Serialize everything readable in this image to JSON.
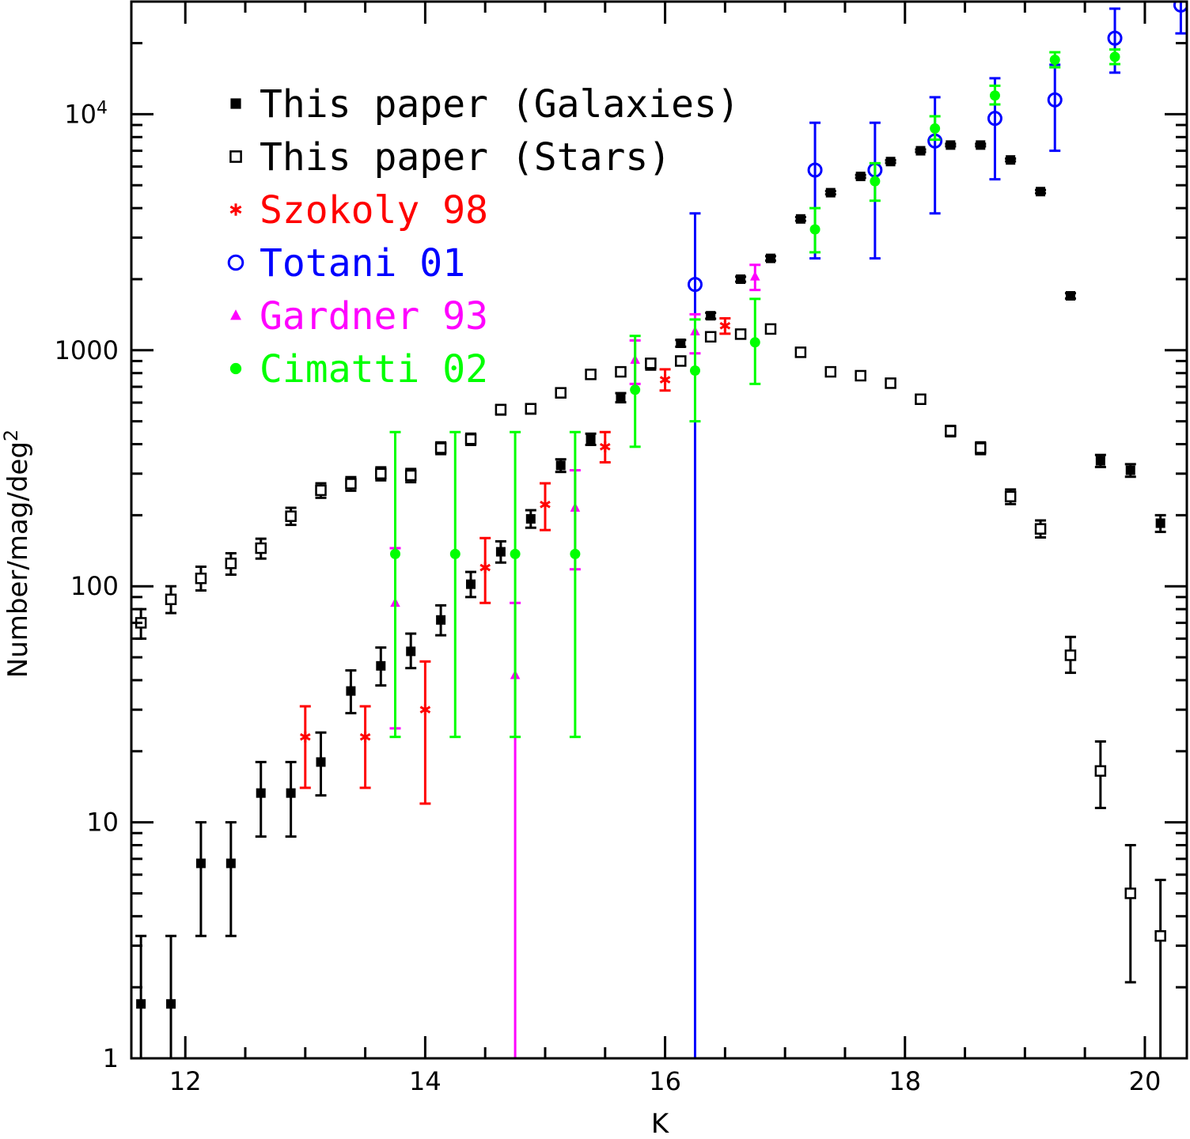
{
  "chart_data": {
    "type": "scatter",
    "title": "",
    "xlabel": "K",
    "ylabel": "Number/mag/deg",
    "ylabel_sup": "2",
    "xscale": "linear",
    "yscale": "log",
    "xlim": [
      11.55,
      20.35
    ],
    "ylim": [
      1,
      30000
    ],
    "xticks": [
      {
        "value": 12,
        "label": "12"
      },
      {
        "value": 14,
        "label": "14"
      },
      {
        "value": 16,
        "label": "16"
      },
      {
        "value": 18,
        "label": "18"
      },
      {
        "value": 20,
        "label": "20"
      }
    ],
    "yticks": [
      {
        "value": 1,
        "label": "1"
      },
      {
        "value": 10,
        "label": "10"
      },
      {
        "value": 100,
        "label": "100"
      },
      {
        "value": 1000,
        "label": "1000"
      },
      {
        "value": 10000,
        "label": "10",
        "sup": "4"
      }
    ],
    "legend_position": "top-left",
    "series": [
      {
        "name": "This paper (Galaxies)",
        "color": "#000000",
        "marker": "filled-square",
        "points": [
          [
            11.63,
            1.7,
            1.0,
            3.3
          ],
          [
            11.88,
            1.7,
            1.0,
            3.3
          ],
          [
            12.13,
            6.7,
            3.3,
            10
          ],
          [
            12.38,
            6.7,
            3.3,
            10
          ],
          [
            12.63,
            13.3,
            8.7,
            18
          ],
          [
            12.88,
            13.3,
            8.7,
            18
          ],
          [
            13.13,
            18,
            13,
            24
          ],
          [
            13.38,
            36,
            29,
            44
          ],
          [
            13.63,
            46,
            38,
            55
          ],
          [
            13.88,
            53,
            45,
            63
          ],
          [
            14.13,
            72,
            62,
            83
          ],
          [
            14.38,
            102,
            90,
            115
          ],
          [
            14.63,
            140,
            126,
            155
          ],
          [
            14.88,
            193,
            177,
            210
          ],
          [
            15.13,
            325,
            305,
            345
          ],
          [
            15.38,
            420,
            397,
            443
          ],
          [
            15.63,
            630,
            602,
            658
          ],
          [
            15.88,
            860,
            828,
            892
          ],
          [
            16.13,
            1070,
            1035,
            1105
          ],
          [
            16.38,
            1400,
            1360,
            1440
          ],
          [
            16.63,
            2000,
            1952,
            2048
          ],
          [
            16.88,
            2450,
            2397,
            2503
          ],
          [
            17.13,
            3600,
            3537,
            3663
          ],
          [
            17.38,
            4650,
            4578,
            4722
          ],
          [
            17.63,
            5450,
            5372,
            5528
          ],
          [
            17.88,
            6300,
            6216,
            6384
          ],
          [
            18.13,
            7000,
            6911,
            7089
          ],
          [
            18.38,
            7400,
            7308,
            7492
          ],
          [
            18.63,
            7400,
            7308,
            7492
          ],
          [
            18.88,
            6400,
            6315,
            6485
          ],
          [
            19.13,
            4700,
            4627,
            4773
          ],
          [
            19.38,
            1700,
            1656,
            1744
          ],
          [
            19.63,
            340,
            320,
            360
          ],
          [
            19.88,
            310,
            291,
            329
          ],
          [
            20.13,
            185,
            170,
            200
          ]
        ]
      },
      {
        "name": "This paper (Stars)",
        "color": "#000000",
        "marker": "open-square",
        "points": [
          [
            11.63,
            70,
            60,
            80
          ],
          [
            11.88,
            88,
            77,
            100
          ],
          [
            12.13,
            108,
            96,
            121
          ],
          [
            12.38,
            125,
            112,
            138
          ],
          [
            12.63,
            145,
            131,
            159
          ],
          [
            12.88,
            198,
            182,
            215
          ],
          [
            13.13,
            255,
            237,
            273
          ],
          [
            13.38,
            272,
            254,
            290
          ],
          [
            13.63,
            300,
            281,
            319
          ],
          [
            13.88,
            295,
            276,
            314
          ],
          [
            14.13,
            385,
            363,
            407
          ],
          [
            14.38,
            420,
            397,
            443
          ],
          [
            14.63,
            560,
            534,
            586
          ],
          [
            14.88,
            565,
            539,
            591
          ],
          [
            15.13,
            660,
            632,
            688
          ],
          [
            15.38,
            790,
            760,
            820
          ],
          [
            15.63,
            810,
            779,
            841
          ],
          [
            15.88,
            880,
            848,
            912
          ],
          [
            16.13,
            900,
            867,
            933
          ],
          [
            16.38,
            1140,
            1104,
            1176
          ],
          [
            16.63,
            1170,
            1134,
            1206
          ],
          [
            16.88,
            1230,
            1193,
            1267
          ],
          [
            17.13,
            980,
            947,
            1013
          ],
          [
            17.38,
            810,
            779,
            841
          ],
          [
            17.63,
            780,
            750,
            810
          ],
          [
            17.88,
            725,
            696,
            754
          ],
          [
            18.13,
            620,
            593,
            647
          ],
          [
            18.38,
            455,
            432,
            478
          ],
          [
            18.63,
            385,
            363,
            407
          ],
          [
            18.88,
            240,
            223,
            257
          ],
          [
            19.13,
            175,
            161,
            190
          ],
          [
            19.38,
            51,
            43,
            61
          ],
          [
            19.63,
            16.5,
            11.5,
            22
          ],
          [
            19.88,
            5.0,
            2.1,
            8.0
          ],
          [
            20.13,
            3.3,
            1.0,
            5.7
          ]
        ]
      },
      {
        "name": "Szokoly 98",
        "color": "#ff0000",
        "marker": "asterisk",
        "points": [
          [
            13.0,
            23,
            14,
            31
          ],
          [
            13.5,
            23,
            14,
            31
          ],
          [
            14.0,
            30,
            12,
            48
          ],
          [
            14.5,
            120,
            85,
            160
          ],
          [
            15.0,
            222,
            173,
            273
          ],
          [
            15.5,
            390,
            335,
            450
          ],
          [
            16.0,
            750,
            675,
            830
          ],
          [
            16.5,
            1270,
            1175,
            1365
          ]
        ]
      },
      {
        "name": "Totani 01",
        "color": "#0000ff",
        "marker": "open-circle",
        "points": [
          [
            16.25,
            1900,
            1,
            3800
          ],
          [
            17.25,
            5800,
            2450,
            9200
          ],
          [
            17.75,
            5800,
            2450,
            9200
          ],
          [
            18.25,
            7700,
            3800,
            11800
          ],
          [
            18.75,
            9600,
            5300,
            14200
          ],
          [
            19.25,
            11500,
            7000,
            16200
          ],
          [
            19.75,
            21000,
            15000,
            28000
          ],
          [
            20.3,
            29000,
            22000,
            38000
          ]
        ]
      },
      {
        "name": "Gardner 93",
        "color": "#ff00ff",
        "marker": "filled-triangle",
        "points": [
          [
            13.75,
            85,
            25,
            145
          ],
          [
            14.75,
            42,
            1,
            85
          ],
          [
            15.25,
            215,
            118,
            310
          ],
          [
            15.75,
            910,
            720,
            1100
          ],
          [
            16.25,
            1200,
            970,
            1420
          ],
          [
            16.75,
            2050,
            1800,
            2300
          ]
        ]
      },
      {
        "name": "Cimatti 02",
        "color": "#00ff00",
        "marker": "filled-circle",
        "points": [
          [
            13.75,
            137,
            23,
            450
          ],
          [
            14.25,
            137,
            23,
            450
          ],
          [
            14.75,
            137,
            23,
            450
          ],
          [
            15.25,
            137,
            23,
            450
          ],
          [
            15.75,
            680,
            390,
            1150
          ],
          [
            16.25,
            820,
            500,
            1350
          ],
          [
            16.75,
            1080,
            720,
            1650
          ],
          [
            17.25,
            3250,
            2600,
            4000
          ],
          [
            17.75,
            5200,
            4300,
            6200
          ],
          [
            18.25,
            8700,
            7800,
            9800
          ],
          [
            18.75,
            12000,
            11000,
            13200
          ],
          [
            19.25,
            17000,
            15800,
            18300
          ],
          [
            19.75,
            17500,
            16300,
            18800
          ]
        ]
      }
    ]
  }
}
